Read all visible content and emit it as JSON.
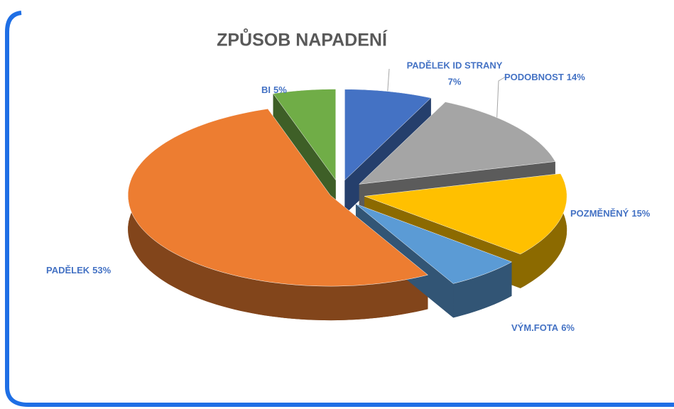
{
  "chart_data": {
    "type": "pie",
    "title": "ZPŮSOB NAPADENÍ",
    "categories": [
      "PADĚLEK ID STRANY",
      "PODOBNOST",
      "POZMĚNĚNÝ",
      "VÝM.FOTA",
      "PADĚLEK",
      "BI"
    ],
    "values": [
      7,
      14,
      15,
      6,
      53,
      5
    ],
    "value_labels": [
      "7%",
      "14%",
      "15%",
      "6%",
      "53%",
      "5%"
    ],
    "colors": [
      "#4472c4",
      "#a5a5a5",
      "#ffc000",
      "#5b9bd5",
      "#ed7d31",
      "#70ad47"
    ]
  }
}
